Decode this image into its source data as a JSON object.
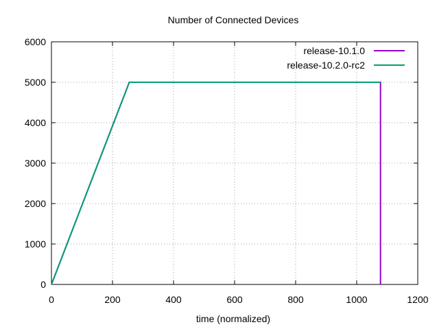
{
  "chart_data": {
    "type": "line",
    "title": "Number of Connected Devices",
    "xlabel": "time (normalized)",
    "ylabel": "",
    "xlim": [
      0,
      1200
    ],
    "ylim": [
      0,
      6000
    ],
    "xticks": [
      0,
      200,
      400,
      600,
      800,
      1000,
      1200
    ],
    "yticks": [
      0,
      1000,
      2000,
      3000,
      4000,
      5000,
      6000
    ],
    "grid": true,
    "legend_position": "top-right",
    "series": [
      {
        "name": "release-10.1.0",
        "color": "#9400d3",
        "x": [
          0,
          255,
          1078,
          1078
        ],
        "y": [
          0,
          5000,
          5000,
          0
        ]
      },
      {
        "name": "release-10.2.0-rc2",
        "color": "#009e73",
        "x": [
          0,
          255,
          1078
        ],
        "y": [
          0,
          5000,
          5000
        ]
      }
    ]
  }
}
